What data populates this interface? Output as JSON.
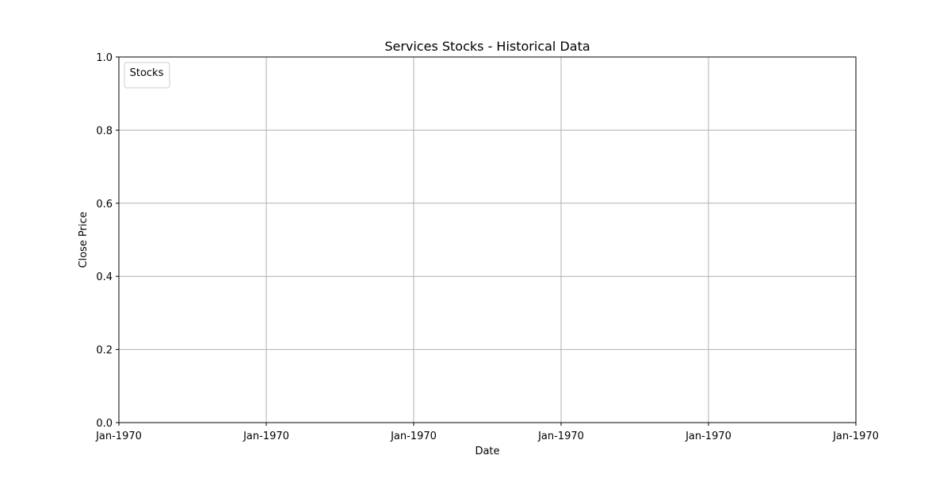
{
  "chart_data": {
    "type": "line",
    "title": "Services Stocks - Historical Data",
    "xlabel": "Date",
    "ylabel": "Close Price",
    "x_tick_labels": [
      "Jan-1970",
      "Jan-1970",
      "Jan-1970",
      "Jan-1970",
      "Jan-1970",
      "Jan-1970"
    ],
    "y_ticks": [
      0.0,
      0.2,
      0.4,
      0.6,
      0.8,
      1.0
    ],
    "y_tick_labels": [
      "0.0",
      "0.2",
      "0.4",
      "0.6",
      "0.8",
      "1.0"
    ],
    "ylim": [
      0,
      1
    ],
    "grid": true,
    "legend": {
      "title": "Stocks",
      "placement": "upper-left",
      "entries": []
    },
    "series": []
  },
  "colors": {
    "background": "#ffffff",
    "axis": "#000000",
    "grid": "#b0b0b0",
    "legend_border": "#cccccc"
  }
}
